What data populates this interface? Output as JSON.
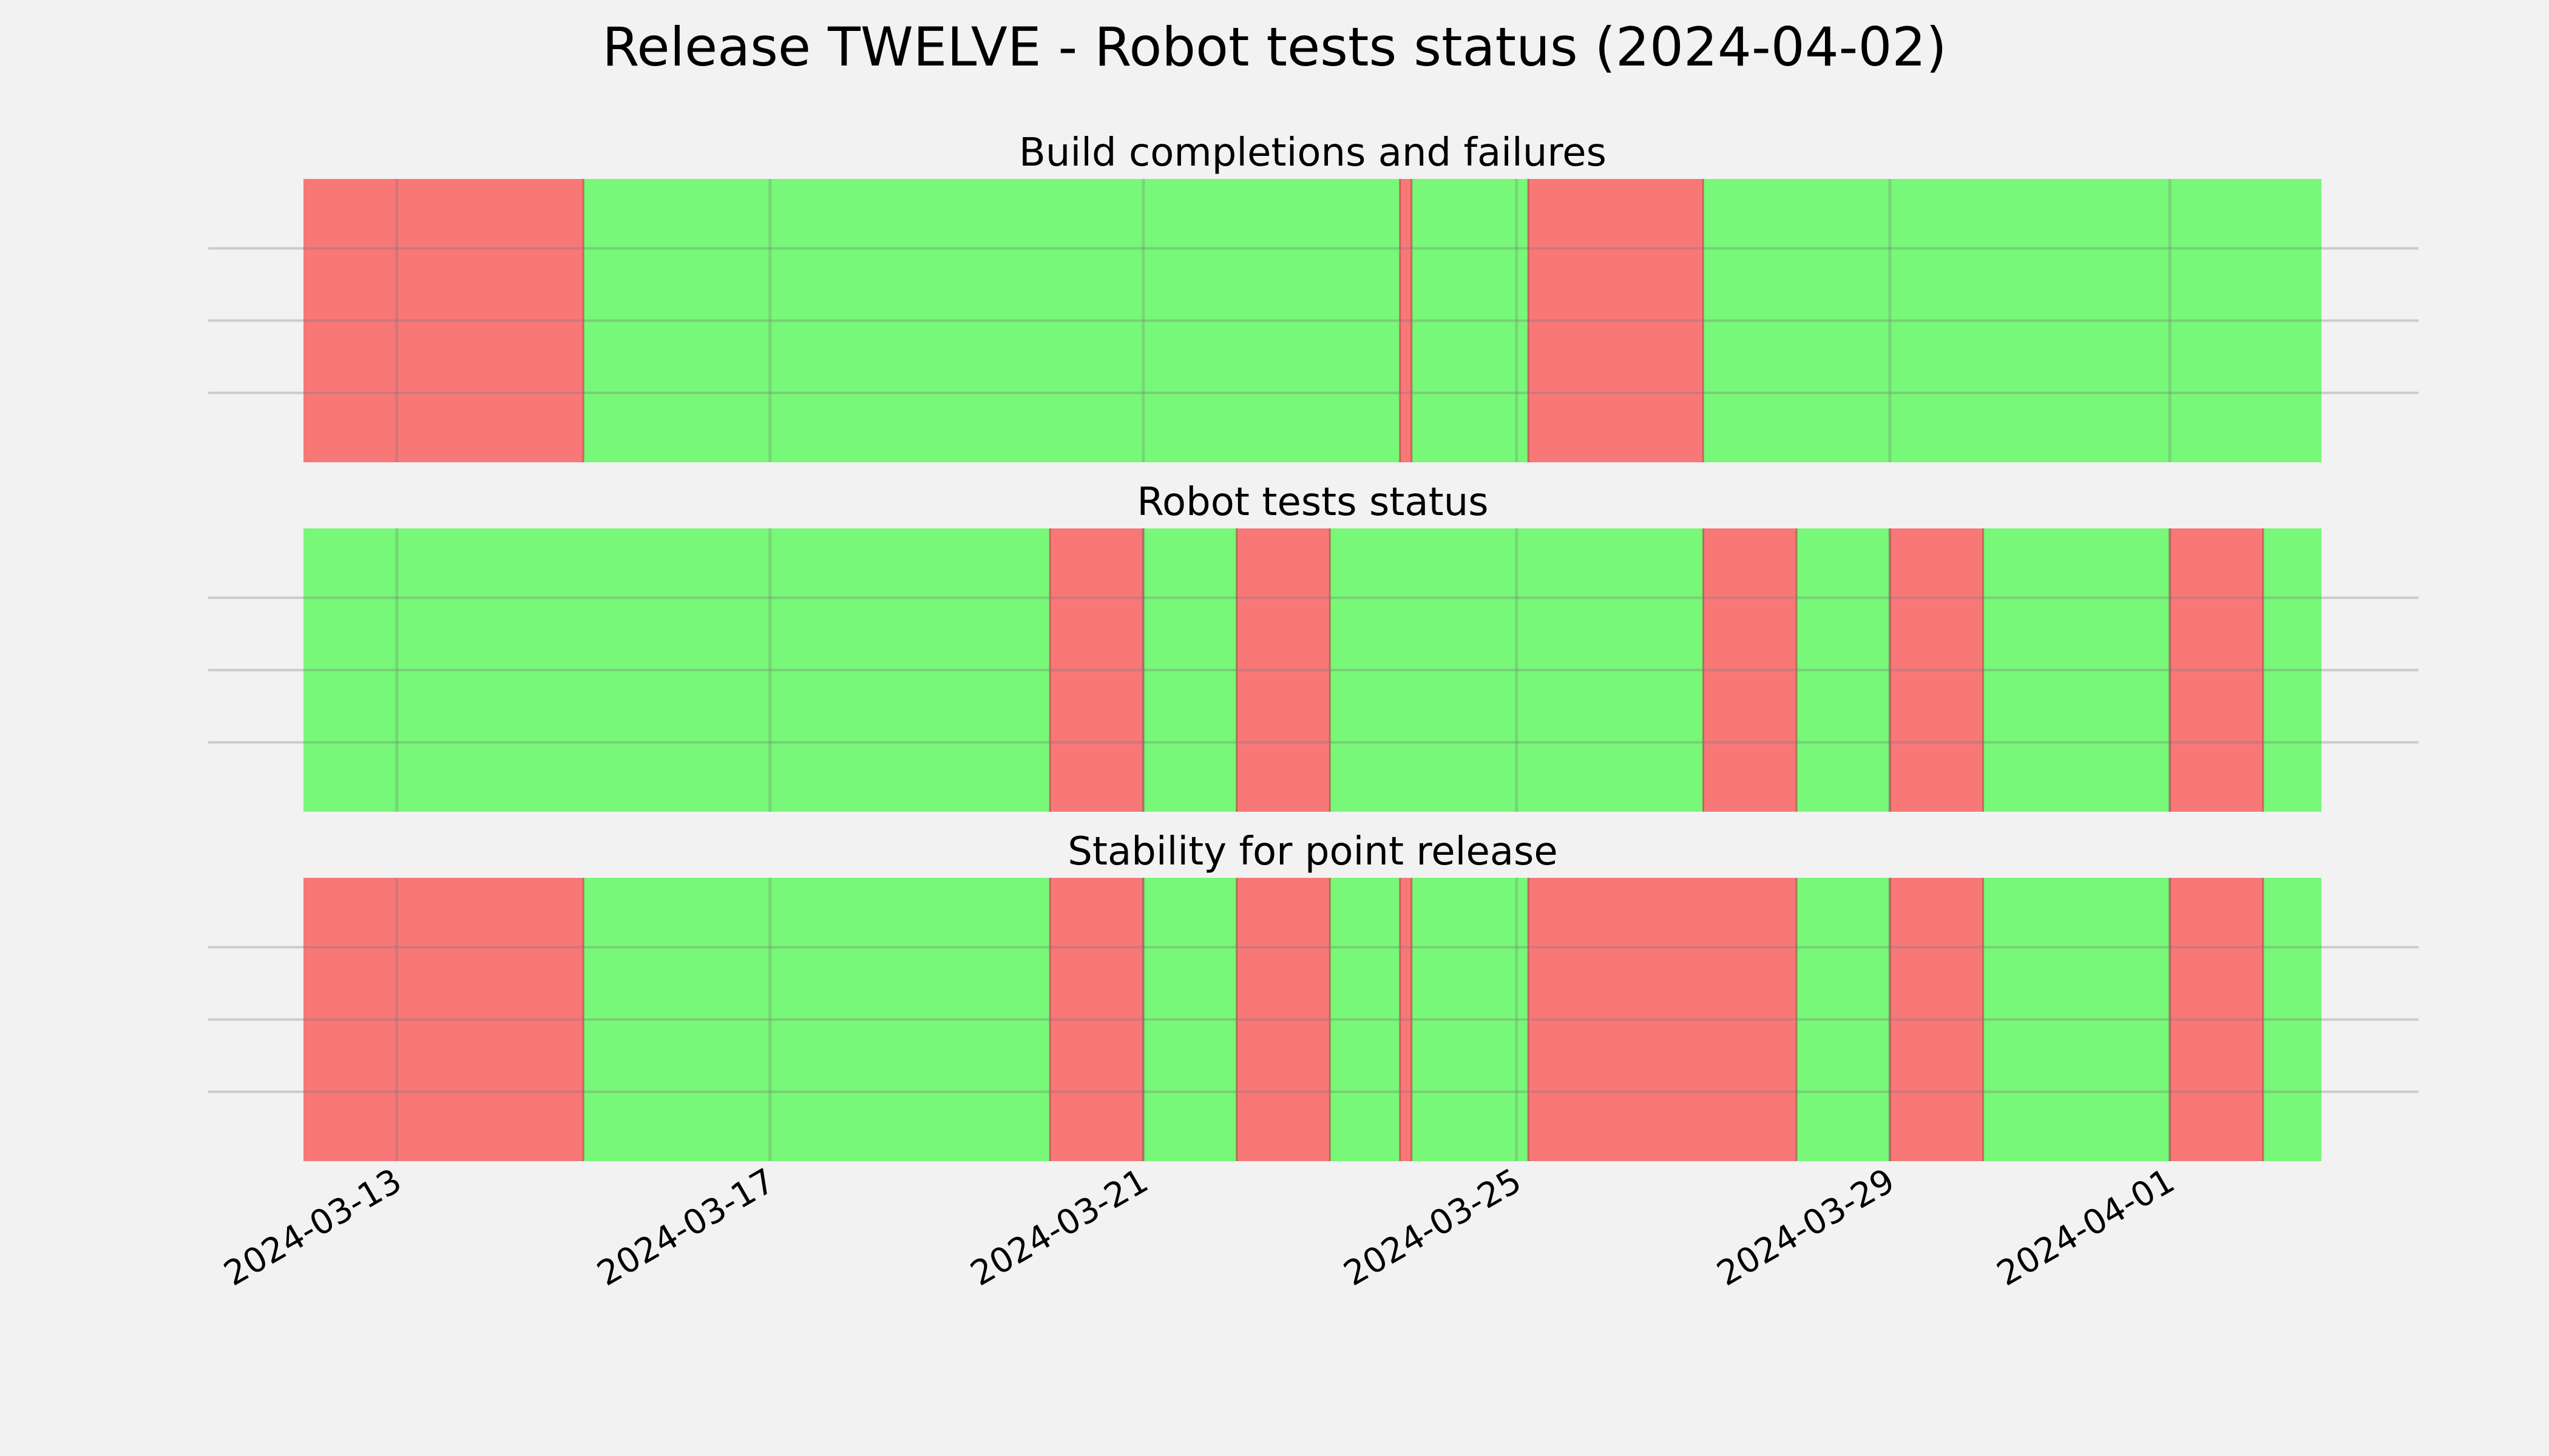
{
  "chart_data": {
    "type": "timeline",
    "title": "Release TWELVE - Robot tests status (2024-04-02)",
    "x_range": [
      "2024-03-12",
      "2024-04-02T15:00"
    ],
    "x_ticks": [
      "2024-03-13",
      "2024-03-17",
      "2024-03-21",
      "2024-03-25",
      "2024-03-29",
      "2024-04-01"
    ],
    "grid": true,
    "colors": {
      "fail": "#f87878",
      "pass": "#78f878",
      "background": "#f2f2f2",
      "grid": "#c8c8c8"
    },
    "panels": [
      {
        "title": "Build completions and failures",
        "segments": [
          {
            "start": "2024-03-12T00:00",
            "end": "2024-03-15T00:00",
            "status": "fail"
          },
          {
            "start": "2024-03-15T00:00",
            "end": "2024-03-23T18:00",
            "status": "pass"
          },
          {
            "start": "2024-03-23T18:00",
            "end": "2024-03-23T21:00",
            "status": "fail"
          },
          {
            "start": "2024-03-23T21:00",
            "end": "2024-03-25T03:00",
            "status": "pass"
          },
          {
            "start": "2024-03-25T03:00",
            "end": "2024-03-27T00:00",
            "status": "fail"
          },
          {
            "start": "2024-03-27T00:00",
            "end": "2024-04-02T15:00",
            "status": "pass"
          }
        ]
      },
      {
        "title": "Robot tests status",
        "segments": [
          {
            "start": "2024-03-12T00:00",
            "end": "2024-03-20T00:00",
            "status": "pass"
          },
          {
            "start": "2024-03-20T00:00",
            "end": "2024-03-21T00:00",
            "status": "fail"
          },
          {
            "start": "2024-03-21T00:00",
            "end": "2024-03-22T00:00",
            "status": "pass"
          },
          {
            "start": "2024-03-22T00:00",
            "end": "2024-03-23T00:00",
            "status": "fail"
          },
          {
            "start": "2024-03-23T00:00",
            "end": "2024-03-27T00:00",
            "status": "pass"
          },
          {
            "start": "2024-03-27T00:00",
            "end": "2024-03-28T00:00",
            "status": "fail"
          },
          {
            "start": "2024-03-28T00:00",
            "end": "2024-03-29T00:00",
            "status": "pass"
          },
          {
            "start": "2024-03-29T00:00",
            "end": "2024-03-30T00:00",
            "status": "fail"
          },
          {
            "start": "2024-03-30T00:00",
            "end": "2024-04-01T00:00",
            "status": "pass"
          },
          {
            "start": "2024-04-01T00:00",
            "end": "2024-04-02T00:00",
            "status": "fail"
          },
          {
            "start": "2024-04-02T00:00",
            "end": "2024-04-02T15:00",
            "status": "pass"
          }
        ]
      },
      {
        "title": "Stability for point release",
        "segments": [
          {
            "start": "2024-03-12T00:00",
            "end": "2024-03-15T00:00",
            "status": "fail"
          },
          {
            "start": "2024-03-15T00:00",
            "end": "2024-03-20T00:00",
            "status": "pass"
          },
          {
            "start": "2024-03-20T00:00",
            "end": "2024-03-21T00:00",
            "status": "fail"
          },
          {
            "start": "2024-03-21T00:00",
            "end": "2024-03-22T00:00",
            "status": "pass"
          },
          {
            "start": "2024-03-22T00:00",
            "end": "2024-03-23T00:00",
            "status": "fail"
          },
          {
            "start": "2024-03-23T00:00",
            "end": "2024-03-23T18:00",
            "status": "pass"
          },
          {
            "start": "2024-03-23T18:00",
            "end": "2024-03-23T21:00",
            "status": "fail"
          },
          {
            "start": "2024-03-23T21:00",
            "end": "2024-03-25T03:00",
            "status": "pass"
          },
          {
            "start": "2024-03-25T03:00",
            "end": "2024-03-28T00:00",
            "status": "fail"
          },
          {
            "start": "2024-03-28T00:00",
            "end": "2024-03-29T00:00",
            "status": "pass"
          },
          {
            "start": "2024-03-29T00:00",
            "end": "2024-03-30T00:00",
            "status": "fail"
          },
          {
            "start": "2024-03-30T00:00",
            "end": "2024-04-01T00:00",
            "status": "pass"
          },
          {
            "start": "2024-04-01T00:00",
            "end": "2024-04-02T00:00",
            "status": "fail"
          },
          {
            "start": "2024-04-02T00:00",
            "end": "2024-04-02T15:00",
            "status": "pass"
          }
        ]
      }
    ]
  }
}
